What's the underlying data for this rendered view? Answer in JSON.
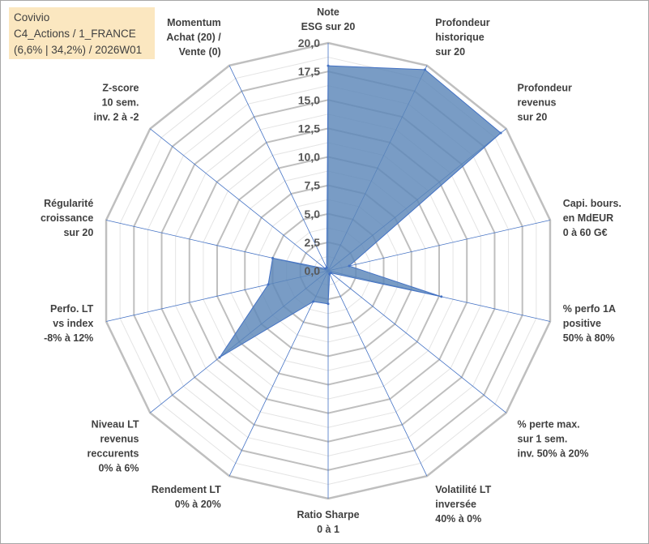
{
  "header": {
    "line1": "Covivio",
    "line2": "C4_Actions / 1_FRANCE",
    "line3": "(6,6% | 34,2%) / 2026W01"
  },
  "chart_data": {
    "type": "radar",
    "title": "Covivio",
    "subtitle": "C4_Actions / 1_FRANCE (6,6% | 34,2%) / 2026W01",
    "rmin": 0,
    "rmax": 20,
    "tick_labels": [
      "0,0",
      "2,5",
      "5,0",
      "7,5",
      "10,0",
      "12,5",
      "15,0",
      "17,5",
      "20,0"
    ],
    "tick_values": [
      0,
      2.5,
      5,
      7.5,
      10,
      12.5,
      15,
      17.5,
      20
    ],
    "minor_grid_step": 1.25,
    "axes": [
      {
        "name": "note-esg",
        "label": [
          "Note",
          "ESG sur 20"
        ],
        "value": 18.0
      },
      {
        "name": "profondeur-historique",
        "label": [
          "Profondeur",
          "historique",
          "sur 20"
        ],
        "value": 19.6
      },
      {
        "name": "profondeur-revenus",
        "label": [
          "Profondeur",
          "revenus",
          "sur 20"
        ],
        "value": 19.4
      },
      {
        "name": "capi-bours",
        "label": [
          "Capi. bours.",
          "en MdEUR",
          "0 à 60 G€"
        ],
        "value": 1.9
      },
      {
        "name": "perfo-1a",
        "label": [
          "% perfo 1A",
          "positive",
          "50% à 80%"
        ],
        "value": 10.2
      },
      {
        "name": "perte-max",
        "label": [
          "% perte max.",
          "sur 1 sem.",
          "inv. 50% à 20%"
        ],
        "value": 0.3
      },
      {
        "name": "volatilite",
        "label": [
          "Volatilité LT",
          "inversée",
          "40% à 0%"
        ],
        "value": 0.3
      },
      {
        "name": "ratio-sharpe",
        "label": [
          "Ratio Sharpe",
          "0 à 1"
        ],
        "value": 2.9
      },
      {
        "name": "rendement-lt",
        "label": [
          "Rendement LT",
          "0% à 20%"
        ],
        "value": 3.0
      },
      {
        "name": "niveau-lt",
        "label": [
          "Niveau LT",
          "revenus",
          "reccurents",
          "0% à 6%"
        ],
        "value": 12.2
      },
      {
        "name": "perfo-lt",
        "label": [
          "Perfo. LT",
          "vs index",
          "-8% à 12%"
        ],
        "value": 5.4
      },
      {
        "name": "regularite",
        "label": [
          "Régularité",
          "croissance",
          "sur 20"
        ],
        "value": 5.0
      },
      {
        "name": "z-score",
        "label": [
          "Z-score",
          "10 sem.",
          "inv. 2 à -2"
        ],
        "value": 0.3
      },
      {
        "name": "momentum",
        "label": [
          "Momentum",
          "Achat (20) /",
          "Vente (0)"
        ],
        "value": 0.3
      }
    ],
    "series_name": "Covivio",
    "colors": {
      "fill": "#5b86b8",
      "stroke": "#4472c4",
      "axis_line": "#4472c4",
      "grid_major": "#bfbfbf",
      "grid_minor": "#e4e4e4",
      "legend_bg": "#fbe7c0"
    }
  }
}
